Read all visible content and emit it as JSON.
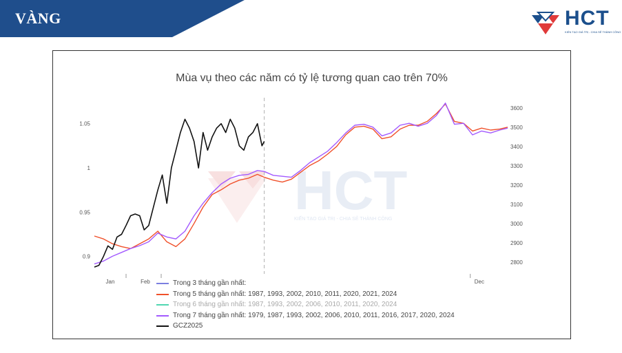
{
  "header": {
    "title": "VÀNG",
    "banner_color": "#1f4e8c",
    "logo_text": "HCT",
    "logo_tagline": "KIẾN TẠO GIÁ TRỊ - CHIA SẺ THÀNH CÔNG"
  },
  "watermark": {
    "text": "HCT",
    "tagline": "KIẾN TẠO GIÁ TRỊ - CHIA SẺ THÀNH CÔNG"
  },
  "chart_data": {
    "type": "line",
    "title": "Mùa vụ theo các năm có tỷ lệ tương quan cao trên 70%",
    "x_tick_labels": [
      "Jan",
      "Feb",
      "Dec"
    ],
    "y_left_ticks": [
      "1.05",
      "1",
      "0.95",
      "0.9"
    ],
    "y_left_values": [
      1.05,
      1.0,
      0.95,
      0.9
    ],
    "y_left_range": [
      0.885,
      1.07
    ],
    "y_right_ticks": [
      "3600",
      "3500",
      "3400",
      "3300",
      "3200",
      "3100",
      "3000",
      "2900",
      "2800"
    ],
    "y_right_values": [
      3600,
      3500,
      3400,
      3300,
      3200,
      3100,
      3000,
      2900,
      2800
    ],
    "y_right_range": [
      2760,
      3610
    ],
    "x_range": [
      0,
      365
    ],
    "vline_day": 150,
    "series": [
      {
        "name": "Trong 3 tháng gần nhất:",
        "color": "#7b7fe0",
        "muted": false,
        "axis": "right",
        "x": [],
        "y": []
      },
      {
        "name": "Trong 5 tháng gần nhất: 1987, 1993, 2002, 2010, 2011, 2020, 2021, 2024",
        "color": "#f0502a",
        "muted": false,
        "axis": "right",
        "x": [
          0,
          8,
          16,
          24,
          32,
          40,
          48,
          56,
          64,
          72,
          80,
          88,
          96,
          104,
          112,
          120,
          128,
          136,
          144,
          150,
          158,
          166,
          174,
          182,
          190,
          198,
          206,
          214,
          222,
          230,
          238,
          246,
          254,
          262,
          270,
          278,
          286,
          294,
          302,
          310,
          318,
          326,
          334,
          342,
          350,
          358,
          365
        ],
        "y": [
          2935,
          2920,
          2895,
          2880,
          2870,
          2895,
          2920,
          2960,
          2905,
          2880,
          2920,
          3000,
          3085,
          3150,
          3175,
          3205,
          3225,
          3235,
          3255,
          3240,
          3225,
          3215,
          3230,
          3265,
          3300,
          3325,
          3360,
          3400,
          3460,
          3500,
          3505,
          3490,
          3440,
          3450,
          3490,
          3510,
          3510,
          3530,
          3570,
          3620,
          3530,
          3520,
          3480,
          3495,
          3485,
          3490,
          3500
        ]
      },
      {
        "name": "Trong 6 tháng gần nhất: 1987, 1993, 2002, 2006, 2010, 2011, 2020, 2024",
        "color": "#4fd6b0",
        "muted": true,
        "axis": "right",
        "x": [],
        "y": []
      },
      {
        "name": "Trong 7 tháng gần nhất: 1979, 1987, 1993, 2002, 2006, 2010, 2011, 2016, 2017, 2020, 2024",
        "color": "#a259ff",
        "muted": false,
        "axis": "right",
        "x": [
          0,
          8,
          16,
          24,
          32,
          40,
          48,
          56,
          64,
          72,
          80,
          88,
          96,
          104,
          112,
          120,
          128,
          136,
          144,
          150,
          158,
          166,
          174,
          182,
          190,
          198,
          206,
          214,
          222,
          230,
          238,
          246,
          254,
          262,
          270,
          278,
          286,
          294,
          302,
          310,
          318,
          326,
          334,
          342,
          350,
          358,
          365
        ],
        "y": [
          2790,
          2805,
          2830,
          2850,
          2870,
          2885,
          2905,
          2950,
          2930,
          2920,
          2960,
          3040,
          3105,
          3160,
          3205,
          3235,
          3250,
          3255,
          3275,
          3270,
          3250,
          3245,
          3240,
          3275,
          3315,
          3345,
          3375,
          3420,
          3470,
          3510,
          3515,
          3500,
          3455,
          3470,
          3510,
          3520,
          3505,
          3520,
          3560,
          3625,
          3515,
          3520,
          3460,
          3480,
          3470,
          3485,
          3495
        ]
      },
      {
        "name": "GCZ2025",
        "color": "#111111",
        "muted": false,
        "axis": "left",
        "x": [
          0,
          4,
          8,
          12,
          16,
          20,
          24,
          28,
          32,
          36,
          40,
          44,
          48,
          52,
          56,
          60,
          64,
          68,
          72,
          76,
          80,
          84,
          88,
          92,
          96,
          100,
          104,
          108,
          112,
          116,
          120,
          124,
          128,
          132,
          136,
          140,
          144,
          148,
          150
        ],
        "y": [
          0.888,
          0.89,
          0.9,
          0.912,
          0.908,
          0.922,
          0.925,
          0.935,
          0.946,
          0.948,
          0.946,
          0.93,
          0.935,
          0.955,
          0.975,
          0.992,
          0.96,
          1.0,
          1.02,
          1.04,
          1.055,
          1.045,
          1.03,
          1.0,
          1.04,
          1.02,
          1.035,
          1.045,
          1.05,
          1.04,
          1.055,
          1.045,
          1.025,
          1.02,
          1.035,
          1.04,
          1.05,
          1.025,
          1.03
        ]
      }
    ]
  }
}
